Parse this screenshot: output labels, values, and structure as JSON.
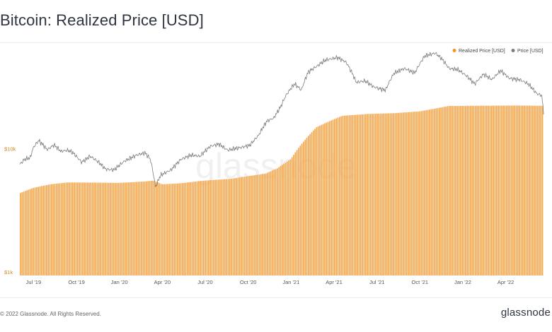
{
  "title": "Bitcoin: Realized Price [USD]",
  "footer": {
    "copyright": "© 2022 Glassnode. All Rights Reserved.",
    "logo": "glassnode"
  },
  "watermark": "glassnode",
  "colors": {
    "realized": "#f7931a",
    "realized_fill": "#f5a64a",
    "price": "#7d7d7d",
    "axis_text": "#555555",
    "y_tick": "#c98a1f"
  },
  "chart_data": {
    "type": "bar",
    "title": "Bitcoin: Realized Price [USD]",
    "x_range": [
      2019.42,
      2022.47
    ],
    "y_scale": "log",
    "ylim": [
      1000,
      60000
    ],
    "y_ticks": [
      {
        "label": "$10k",
        "value": 10000
      },
      {
        "label": "$1k",
        "value": 1000
      }
    ],
    "x_ticks": [
      {
        "label": "Jul '19",
        "t": 2019.5
      },
      {
        "label": "Oct '19",
        "t": 2019.75
      },
      {
        "label": "Jan '20",
        "t": 2020.0
      },
      {
        "label": "Apr '20",
        "t": 2020.25
      },
      {
        "label": "Jul '20",
        "t": 2020.5
      },
      {
        "label": "Oct '20",
        "t": 2020.75
      },
      {
        "label": "Jan '21",
        "t": 2021.0
      },
      {
        "label": "Apr '21",
        "t": 2021.25
      },
      {
        "label": "Jul '21",
        "t": 2021.5
      },
      {
        "label": "Oct '21",
        "t": 2021.75
      },
      {
        "label": "Jan '22",
        "t": 2022.0
      },
      {
        "label": "Apr '22",
        "t": 2022.25
      }
    ],
    "legend": {
      "placement": "top-right",
      "items": [
        {
          "name": "Realized Price [USD]",
          "color": "#f7931a"
        },
        {
          "name": "Price [USD]",
          "color": "#7d7d7d"
        }
      ]
    },
    "series": [
      {
        "name": "Realized Price [USD]",
        "style": "bars",
        "points": [
          [
            2019.42,
            4650
          ],
          [
            2019.5,
            5150
          ],
          [
            2019.6,
            5500
          ],
          [
            2019.7,
            5700
          ],
          [
            2019.85,
            5680
          ],
          [
            2020.0,
            5650
          ],
          [
            2020.15,
            5800
          ],
          [
            2020.2,
            5900
          ],
          [
            2020.25,
            5500
          ],
          [
            2020.35,
            5600
          ],
          [
            2020.5,
            5900
          ],
          [
            2020.65,
            6100
          ],
          [
            2020.75,
            6400
          ],
          [
            2020.85,
            6700
          ],
          [
            2020.92,
            7400
          ],
          [
            2021.0,
            8800
          ],
          [
            2021.08,
            12500
          ],
          [
            2021.15,
            16000
          ],
          [
            2021.3,
            19800
          ],
          [
            2021.45,
            20500
          ],
          [
            2021.6,
            20800
          ],
          [
            2021.75,
            21500
          ],
          [
            2021.85,
            22800
          ],
          [
            2021.92,
            23800
          ],
          [
            2022.1,
            23900
          ],
          [
            2022.3,
            24000
          ],
          [
            2022.45,
            23900
          ]
        ]
      },
      {
        "name": "Price [USD]",
        "style": "line",
        "points": [
          [
            2019.42,
            8000
          ],
          [
            2019.45,
            8800
          ],
          [
            2019.48,
            9000
          ],
          [
            2019.5,
            11000
          ],
          [
            2019.53,
            12500
          ],
          [
            2019.58,
            10500
          ],
          [
            2019.62,
            11500
          ],
          [
            2019.66,
            10200
          ],
          [
            2019.7,
            10400
          ],
          [
            2019.73,
            9900
          ],
          [
            2019.78,
            8300
          ],
          [
            2019.83,
            9300
          ],
          [
            2019.88,
            8300
          ],
          [
            2019.92,
            7300
          ],
          [
            2019.97,
            7200
          ],
          [
            2020.03,
            8500
          ],
          [
            2020.1,
            9500
          ],
          [
            2020.15,
            9900
          ],
          [
            2020.18,
            8800
          ],
          [
            2020.21,
            5200
          ],
          [
            2020.24,
            6500
          ],
          [
            2020.3,
            7200
          ],
          [
            2020.36,
            8800
          ],
          [
            2020.42,
            9500
          ],
          [
            2020.47,
            9300
          ],
          [
            2020.53,
            11200
          ],
          [
            2020.58,
            11700
          ],
          [
            2020.63,
            10400
          ],
          [
            2020.7,
            10900
          ],
          [
            2020.76,
            11400
          ],
          [
            2020.81,
            13700
          ],
          [
            2020.86,
            18000
          ],
          [
            2020.9,
            19000
          ],
          [
            2020.94,
            23500
          ],
          [
            2020.97,
            29000
          ],
          [
            2021.02,
            36000
          ],
          [
            2021.06,
            32000
          ],
          [
            2021.1,
            45000
          ],
          [
            2021.15,
            50000
          ],
          [
            2021.2,
            56000
          ],
          [
            2021.27,
            59000
          ],
          [
            2021.32,
            54000
          ],
          [
            2021.38,
            37000
          ],
          [
            2021.43,
            38000
          ],
          [
            2021.48,
            34000
          ],
          [
            2021.55,
            32000
          ],
          [
            2021.6,
            44000
          ],
          [
            2021.66,
            48000
          ],
          [
            2021.72,
            44000
          ],
          [
            2021.78,
            61000
          ],
          [
            2021.84,
            64000
          ],
          [
            2021.88,
            57000
          ],
          [
            2021.92,
            48000
          ],
          [
            2021.97,
            47000
          ],
          [
            2022.02,
            42000
          ],
          [
            2022.07,
            36000
          ],
          [
            2022.12,
            43000
          ],
          [
            2022.17,
            39000
          ],
          [
            2022.22,
            46000
          ],
          [
            2022.27,
            40000
          ],
          [
            2022.33,
            39000
          ],
          [
            2022.38,
            36000
          ],
          [
            2022.43,
            30000
          ],
          [
            2022.46,
            29000
          ],
          [
            2022.47,
            20500
          ]
        ]
      }
    ]
  }
}
